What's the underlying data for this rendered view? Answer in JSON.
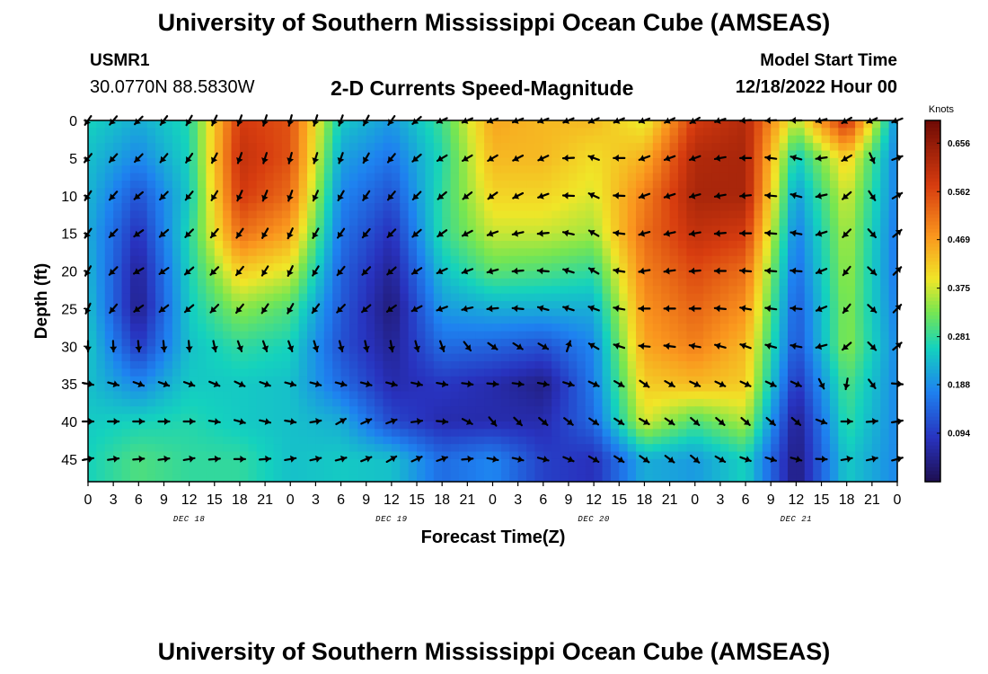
{
  "header": {
    "title": "University of Southern Mississippi Ocean Cube (AMSEAS)",
    "station": "USMR1",
    "coords": "30.0770N  88.5830W",
    "subtitle": "2-D Currents Speed-Magnitude",
    "model_start_label": "Model Start Time",
    "model_start_value": "12/18/2022 Hour 00"
  },
  "footer": {
    "title": "University of Southern Mississippi Ocean Cube (AMSEAS)"
  },
  "chart_data": {
    "type": "heatmap",
    "title": "2-D Currents Speed-Magnitude",
    "xlabel": "Forecast Time(Z)",
    "ylabel": "Depth (ft)",
    "x_ticks": [
      "0",
      "3",
      "6",
      "9",
      "12",
      "15",
      "18",
      "21",
      "0",
      "3",
      "6",
      "9",
      "12",
      "15",
      "18",
      "21",
      "0",
      "3",
      "6",
      "9",
      "12",
      "15",
      "18",
      "21",
      "0",
      "3",
      "6",
      "9",
      "12",
      "15",
      "18",
      "21",
      "0"
    ],
    "day_labels": [
      "DEC 18",
      "DEC 19",
      "DEC 20",
      "DEC 21"
    ],
    "y_ticks": [
      0,
      5,
      10,
      15,
      20,
      25,
      30,
      35,
      40,
      45
    ],
    "ylim": [
      0,
      48
    ],
    "colorbar": {
      "unit": "Knots",
      "ticks": [
        "0.656",
        "0.562",
        "0.469",
        "0.375",
        "0.281",
        "0.188",
        "0.094"
      ],
      "range": [
        0,
        0.7
      ]
    },
    "depths_ft": [
      0,
      5,
      10,
      15,
      20,
      25,
      30,
      35,
      40,
      45
    ],
    "times_h": [
      0,
      6,
      12,
      18,
      24,
      30,
      36,
      42,
      48,
      54,
      60,
      66,
      72,
      78,
      84,
      90,
      96
    ],
    "speed_knots": [
      [
        0.26,
        0.22,
        0.27,
        0.58,
        0.55,
        0.25,
        0.2,
        0.29,
        0.46,
        0.44,
        0.44,
        0.38,
        0.58,
        0.62,
        0.36,
        0.6,
        0.18
      ],
      [
        0.24,
        0.18,
        0.26,
        0.6,
        0.55,
        0.21,
        0.16,
        0.27,
        0.44,
        0.44,
        0.4,
        0.45,
        0.62,
        0.63,
        0.25,
        0.42,
        0.17
      ],
      [
        0.23,
        0.12,
        0.25,
        0.58,
        0.52,
        0.18,
        0.12,
        0.28,
        0.41,
        0.41,
        0.38,
        0.5,
        0.63,
        0.63,
        0.2,
        0.38,
        0.17
      ],
      [
        0.22,
        0.08,
        0.27,
        0.52,
        0.46,
        0.16,
        0.08,
        0.28,
        0.37,
        0.37,
        0.35,
        0.52,
        0.6,
        0.58,
        0.17,
        0.36,
        0.16
      ],
      [
        0.23,
        0.05,
        0.26,
        0.42,
        0.38,
        0.14,
        0.05,
        0.24,
        0.31,
        0.3,
        0.28,
        0.5,
        0.56,
        0.52,
        0.15,
        0.35,
        0.16
      ],
      [
        0.24,
        0.04,
        0.25,
        0.34,
        0.3,
        0.13,
        0.03,
        0.2,
        0.22,
        0.22,
        0.22,
        0.48,
        0.53,
        0.48,
        0.13,
        0.34,
        0.17
      ],
      [
        0.25,
        0.09,
        0.24,
        0.28,
        0.26,
        0.12,
        0.05,
        0.15,
        0.14,
        0.12,
        0.18,
        0.46,
        0.5,
        0.44,
        0.12,
        0.34,
        0.18
      ],
      [
        0.24,
        0.18,
        0.25,
        0.25,
        0.24,
        0.15,
        0.07,
        0.09,
        0.07,
        0.04,
        0.17,
        0.42,
        0.44,
        0.42,
        0.08,
        0.3,
        0.18
      ],
      [
        0.25,
        0.26,
        0.27,
        0.25,
        0.24,
        0.22,
        0.11,
        0.07,
        0.07,
        0.07,
        0.15,
        0.38,
        0.3,
        0.36,
        0.04,
        0.28,
        0.18
      ],
      [
        0.26,
        0.3,
        0.28,
        0.28,
        0.24,
        0.25,
        0.24,
        0.15,
        0.18,
        0.1,
        0.08,
        0.22,
        0.2,
        0.26,
        0.03,
        0.25,
        0.18
      ]
    ],
    "arrow_deg": [
      [
        215,
        225,
        210,
        200,
        195,
        200,
        215,
        245,
        250,
        250,
        245,
        250,
        240,
        265,
        270,
        240,
        250
      ],
      [
        220,
        225,
        215,
        200,
        195,
        200,
        220,
        240,
        240,
        245,
        290,
        250,
        250,
        270,
        285,
        240,
        70
      ],
      [
        215,
        230,
        220,
        205,
        200,
        210,
        220,
        230,
        235,
        250,
        295,
        250,
        255,
        265,
        285,
        230,
        60
      ],
      [
        215,
        235,
        225,
        215,
        205,
        215,
        225,
        235,
        250,
        265,
        300,
        255,
        260,
        270,
        280,
        225,
        50
      ],
      [
        210,
        240,
        230,
        220,
        205,
        220,
        230,
        245,
        255,
        275,
        300,
        260,
        265,
        275,
        275,
        220,
        45
      ],
      [
        205,
        235,
        230,
        220,
        210,
        225,
        235,
        250,
        265,
        285,
        290,
        270,
        270,
        280,
        275,
        220,
        45
      ],
      [
        180,
        175,
        175,
        160,
        160,
        165,
        170,
        160,
        125,
        120,
        300,
        275,
        280,
        290,
        280,
        230,
        50
      ],
      [
        100,
        110,
        110,
        115,
        105,
        105,
        105,
        100,
        95,
        100,
        115,
        125,
        115,
        115,
        115,
        190,
        95
      ],
      [
        90,
        90,
        90,
        105,
        100,
        60,
        70,
        95,
        140,
        130,
        125,
        120,
        130,
        130,
        130,
        90,
        80
      ],
      [
        80,
        85,
        80,
        90,
        80,
        75,
        60,
        70,
        100,
        105,
        120,
        125,
        130,
        110,
        105,
        80,
        75
      ]
    ]
  }
}
